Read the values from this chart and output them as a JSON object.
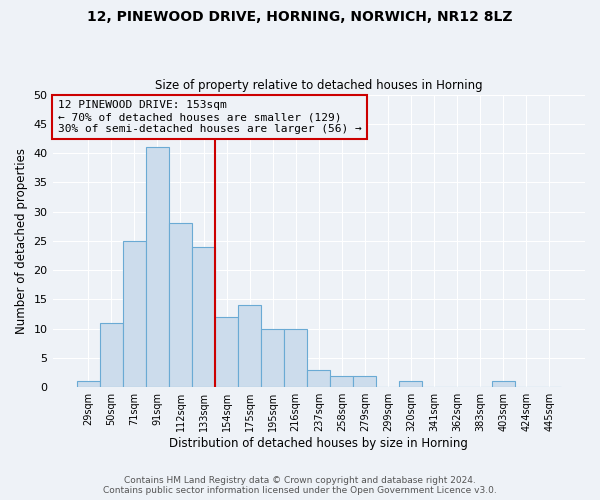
{
  "title1": "12, PINEWOOD DRIVE, HORNING, NORWICH, NR12 8LZ",
  "title2": "Size of property relative to detached houses in Horning",
  "xlabel": "Distribution of detached houses by size in Horning",
  "ylabel": "Number of detached properties",
  "bar_labels": [
    "29sqm",
    "50sqm",
    "71sqm",
    "91sqm",
    "112sqm",
    "133sqm",
    "154sqm",
    "175sqm",
    "195sqm",
    "216sqm",
    "237sqm",
    "258sqm",
    "279sqm",
    "299sqm",
    "320sqm",
    "341sqm",
    "362sqm",
    "383sqm",
    "403sqm",
    "424sqm",
    "445sqm"
  ],
  "bar_values": [
    1,
    11,
    25,
    41,
    28,
    24,
    12,
    14,
    10,
    10,
    3,
    2,
    2,
    0,
    1,
    0,
    0,
    0,
    1,
    0,
    0
  ],
  "bar_color": "#ccdcec",
  "bar_edge_color": "#6aaad4",
  "highlight_line_color": "#cc0000",
  "highlight_line_idx": 6,
  "annotation_box_text": "12 PINEWOOD DRIVE: 153sqm\n← 70% of detached houses are smaller (129)\n30% of semi-detached houses are larger (56) →",
  "annotation_box_color": "#cc0000",
  "ylim": [
    0,
    50
  ],
  "yticks": [
    0,
    5,
    10,
    15,
    20,
    25,
    30,
    35,
    40,
    45,
    50
  ],
  "footer1": "Contains HM Land Registry data © Crown copyright and database right 2024.",
  "footer2": "Contains public sector information licensed under the Open Government Licence v3.0.",
  "bg_color": "#eef2f7",
  "grid_color": "#ffffff"
}
